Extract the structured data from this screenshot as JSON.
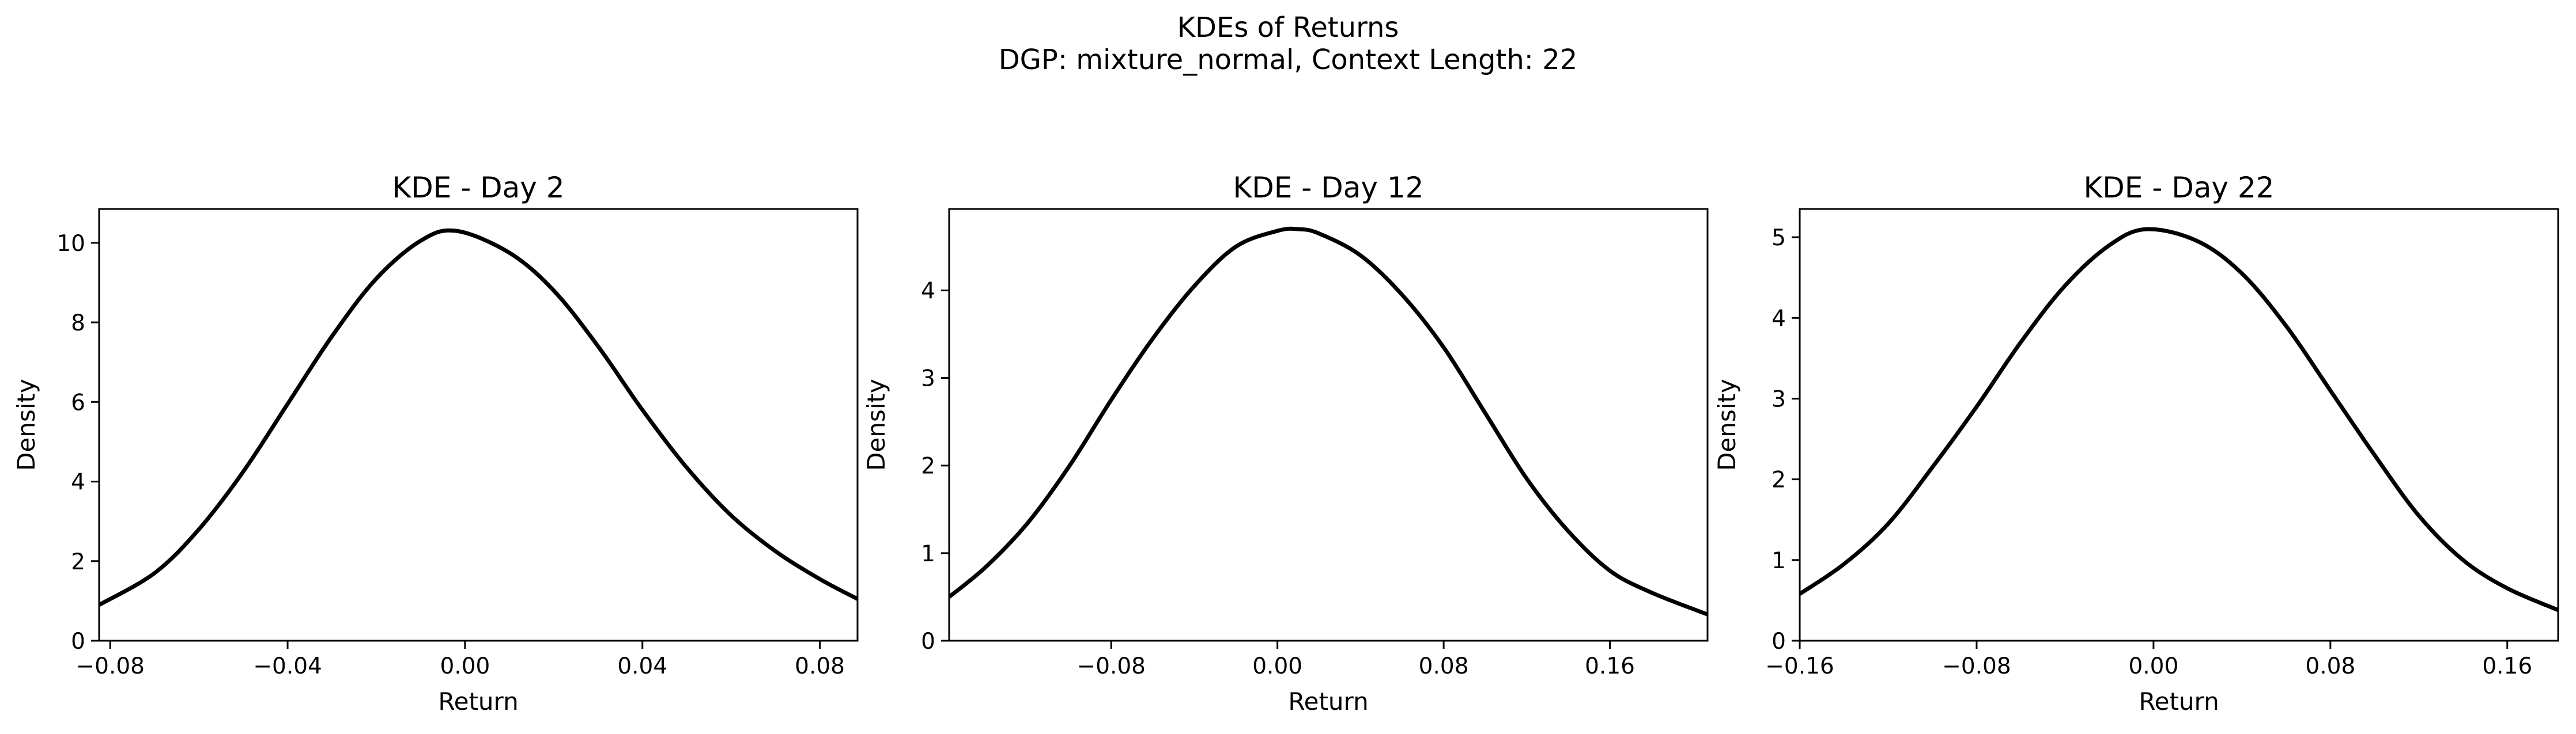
{
  "figure": {
    "title": "KDEs of Returns",
    "subtitle": "DGP: mixture_normal, Context Length: 22"
  },
  "colors": {
    "line": "#000000",
    "axes": "#000000",
    "background": "#ffffff"
  },
  "chart_data": [
    {
      "type": "line",
      "title": "KDE - Day 2",
      "xlabel": "Return",
      "ylabel": "Density",
      "xlim": [
        -0.0825,
        0.0885
      ],
      "ylim": [
        0,
        10.85
      ],
      "xticks": [
        -0.08,
        -0.04,
        0.0,
        0.04,
        0.08
      ],
      "xtick_labels": [
        "−0.08",
        "−0.04",
        "0.00",
        "0.04",
        "0.08"
      ],
      "yticks": [
        0,
        2,
        4,
        6,
        8,
        10
      ],
      "ytick_labels": [
        "0",
        "2",
        "4",
        "6",
        "8",
        "10"
      ],
      "grid": false,
      "series": [
        {
          "x": [
            -0.0825,
            -0.07,
            -0.06,
            -0.05,
            -0.04,
            -0.03,
            -0.02,
            -0.01,
            -0.002,
            0.01,
            0.02,
            0.03,
            0.04,
            0.05,
            0.06,
            0.07,
            0.08,
            0.0885
          ],
          "y": [
            0.9,
            1.7,
            2.8,
            4.25,
            5.95,
            7.65,
            9.1,
            10.05,
            10.3,
            9.75,
            8.8,
            7.4,
            5.8,
            4.35,
            3.15,
            2.25,
            1.55,
            1.05
          ]
        }
      ]
    },
    {
      "type": "line",
      "title": "KDE - Day 12",
      "xlabel": "Return",
      "ylabel": "Density",
      "xlim": [
        -0.158,
        0.207
      ],
      "ylim": [
        0,
        4.93
      ],
      "xticks": [
        -0.08,
        0.0,
        0.08,
        0.16
      ],
      "xtick_labels": [
        "−0.08",
        "0.00",
        "0.08",
        "0.16"
      ],
      "yticks": [
        0,
        1,
        2,
        3,
        4
      ],
      "ytick_labels": [
        "0",
        "1",
        "2",
        "3",
        "4"
      ],
      "grid": false,
      "series": [
        {
          "x": [
            -0.158,
            -0.14,
            -0.12,
            -0.1,
            -0.08,
            -0.06,
            -0.04,
            -0.02,
            0.0,
            0.01,
            0.02,
            0.04,
            0.06,
            0.08,
            0.1,
            0.12,
            0.14,
            0.16,
            0.18,
            0.207
          ],
          "y": [
            0.5,
            0.85,
            1.35,
            2.0,
            2.75,
            3.45,
            4.05,
            4.5,
            4.68,
            4.7,
            4.65,
            4.4,
            3.95,
            3.35,
            2.6,
            1.85,
            1.25,
            0.8,
            0.55,
            0.3
          ]
        }
      ]
    },
    {
      "type": "line",
      "title": "KDE - Day 22",
      "xlabel": "Return",
      "ylabel": "Density",
      "xlim": [
        -0.16,
        0.183
      ],
      "ylim": [
        0,
        5.35
      ],
      "xticks": [
        -0.16,
        -0.08,
        0.0,
        0.08,
        0.16
      ],
      "xtick_labels": [
        "−0.16",
        "−0.08",
        "0.00",
        "0.08",
        "0.16"
      ],
      "yticks": [
        0,
        1,
        2,
        3,
        4,
        5
      ],
      "ytick_labels": [
        "0",
        "1",
        "2",
        "3",
        "4",
        "5"
      ],
      "grid": false,
      "series": [
        {
          "x": [
            -0.16,
            -0.14,
            -0.12,
            -0.1,
            -0.08,
            -0.06,
            -0.04,
            -0.02,
            -0.003,
            0.02,
            0.04,
            0.06,
            0.08,
            0.1,
            0.12,
            0.14,
            0.16,
            0.183
          ],
          "y": [
            0.58,
            0.95,
            1.45,
            2.15,
            2.9,
            3.7,
            4.4,
            4.9,
            5.1,
            4.95,
            4.55,
            3.9,
            3.1,
            2.3,
            1.55,
            1.0,
            0.65,
            0.38
          ]
        }
      ]
    }
  ]
}
